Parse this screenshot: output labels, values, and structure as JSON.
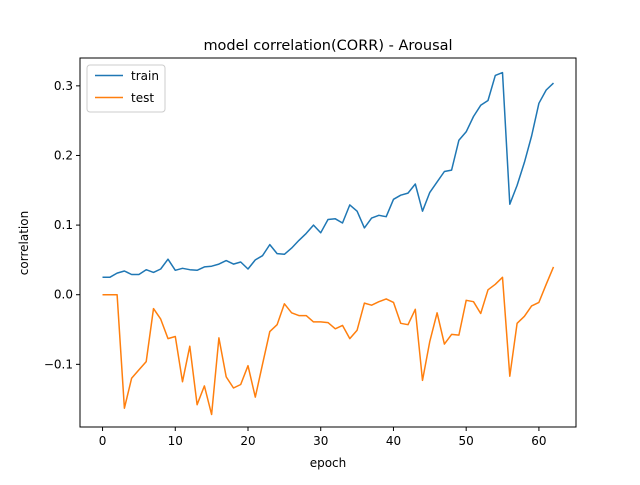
{
  "chart_data": {
    "type": "line",
    "title": "model correlation(CORR) - Arousal",
    "xlabel": "epoch",
    "ylabel": "correlation",
    "xlim": [
      -3.1,
      65.1
    ],
    "ylim": [
      -0.19,
      0.34
    ],
    "xticks": [
      0,
      10,
      20,
      30,
      40,
      50,
      60
    ],
    "yticks": [
      -0.1,
      0.0,
      0.1,
      0.2,
      0.3
    ],
    "ytick_labels": [
      "−0.1",
      "0.0",
      "0.1",
      "0.2",
      "0.3"
    ],
    "grid": false,
    "legend_position": "top-left",
    "x": [
      0,
      1,
      2,
      3,
      4,
      5,
      6,
      7,
      8,
      9,
      10,
      11,
      12,
      13,
      14,
      15,
      16,
      17,
      18,
      19,
      20,
      21,
      22,
      23,
      24,
      25,
      26,
      27,
      28,
      29,
      30,
      31,
      32,
      33,
      34,
      35,
      36,
      37,
      38,
      39,
      40,
      41,
      42,
      43,
      44,
      45,
      46,
      47,
      48,
      49,
      50,
      51,
      52,
      53,
      54,
      55,
      56,
      57,
      58,
      59,
      60,
      61,
      62
    ],
    "series": [
      {
        "name": "train",
        "color": "#1f77b4",
        "values": [
          0.025,
          0.025,
          0.031,
          0.034,
          0.029,
          0.029,
          0.036,
          0.032,
          0.037,
          0.051,
          0.035,
          0.038,
          0.036,
          0.035,
          0.04,
          0.041,
          0.044,
          0.049,
          0.044,
          0.047,
          0.037,
          0.05,
          0.056,
          0.072,
          0.059,
          0.058,
          0.067,
          0.078,
          0.088,
          0.1,
          0.089,
          0.108,
          0.109,
          0.103,
          0.129,
          0.12,
          0.096,
          0.11,
          0.114,
          0.112,
          0.137,
          0.143,
          0.146,
          0.159,
          0.12,
          0.147,
          0.162,
          0.177,
          0.179,
          0.222,
          0.234,
          0.256,
          0.272,
          0.279,
          0.315,
          0.319,
          0.13,
          0.157,
          0.19,
          0.228,
          0.275,
          0.294,
          0.304
        ]
      },
      {
        "name": "test",
        "color": "#ff7f0e",
        "values": [
          0.0,
          0.0,
          0.0,
          -0.163,
          -0.12,
          -0.108,
          -0.096,
          -0.02,
          -0.035,
          -0.063,
          -0.06,
          -0.125,
          -0.074,
          -0.158,
          -0.131,
          -0.172,
          -0.062,
          -0.118,
          -0.134,
          -0.129,
          -0.102,
          -0.147,
          -0.1,
          -0.053,
          -0.043,
          -0.013,
          -0.026,
          -0.03,
          -0.03,
          -0.039,
          -0.039,
          -0.04,
          -0.049,
          -0.044,
          -0.063,
          -0.051,
          -0.012,
          -0.015,
          -0.01,
          -0.006,
          -0.011,
          -0.041,
          -0.043,
          -0.021,
          -0.123,
          -0.067,
          -0.026,
          -0.071,
          -0.057,
          -0.058,
          -0.008,
          -0.01,
          -0.027,
          0.007,
          0.015,
          0.025,
          -0.117,
          -0.041,
          -0.031,
          -0.016,
          -0.011,
          0.015,
          0.04
        ]
      }
    ]
  }
}
